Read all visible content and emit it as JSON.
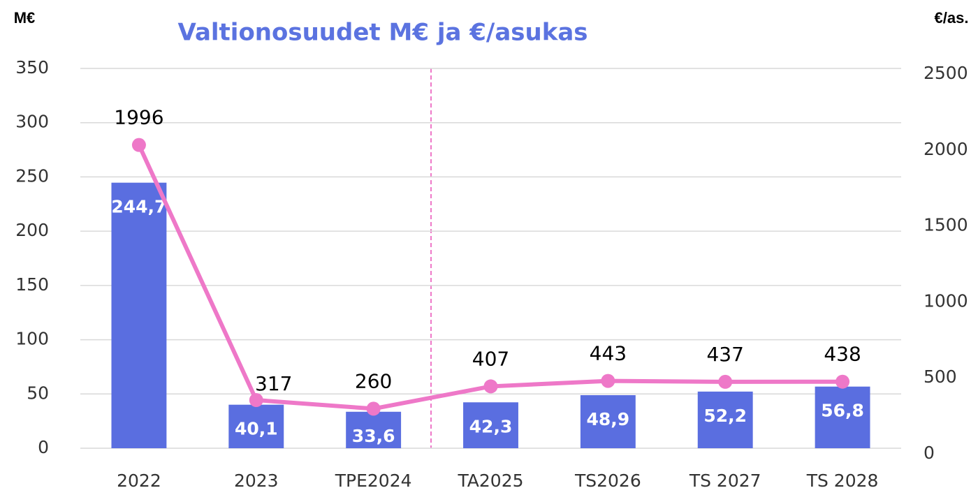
{
  "chart_data": {
    "type": "bar_line",
    "title": "Valtionosuudet M€ ja €/asukas",
    "y_label": "M€",
    "y2_label": "€/as.",
    "categories": [
      "2022",
      "2023",
      "TPE2024",
      "TA2025",
      "TS2026",
      "TS 2027",
      "TS 2028"
    ],
    "series": [
      {
        "name": "M€",
        "type": "bar",
        "color": "#5a6ee0",
        "values": [
          244.7,
          40.1,
          33.6,
          42.3,
          48.9,
          52.2,
          56.8
        ],
        "value_labels": [
          "244,7",
          "40,1",
          "33,6",
          "42,3",
          "48,9",
          "52,2",
          "56,8"
        ]
      },
      {
        "name": "€/as.",
        "type": "line",
        "axis": "y2",
        "color": "#ee78c8",
        "values": [
          1996,
          317,
          260,
          407,
          443,
          437,
          438
        ]
      }
    ],
    "ylim": [
      0,
      350
    ],
    "yticks": [
      0,
      50,
      100,
      150,
      200,
      250,
      300,
      350
    ],
    "y2lim": [
      0,
      2500
    ],
    "y2ticks": [
      0,
      500,
      1000,
      1500,
      2000,
      2500
    ],
    "grid": true
  }
}
